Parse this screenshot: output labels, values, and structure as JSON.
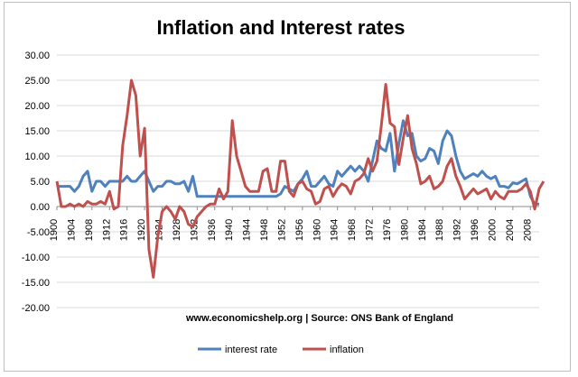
{
  "chart_data": {
    "type": "line",
    "title": "Inflation and Interest rates",
    "source_note": "www.economicshelp.org | Source: ONS Bank of England",
    "y_ticks": [
      "30.00",
      "25.00",
      "20.00",
      "15.00",
      "10.00",
      "5.00",
      "0.00",
      "-5.00",
      "-10.00",
      "-15.00",
      "-20.00"
    ],
    "ylim": [
      -20,
      30
    ],
    "xlim": [
      1900,
      2010
    ],
    "x_tick_labels": [
      "1900",
      "1904",
      "1908",
      "1912",
      "1916",
      "1920",
      "1924",
      "1928",
      "1932",
      "1936",
      "1940",
      "1944",
      "1948",
      "1952",
      "1956",
      "1960",
      "1964",
      "1968",
      "1972",
      "1976",
      "1980",
      "1984",
      "1988",
      "1992",
      "1996",
      "2000",
      "2004",
      "2008"
    ],
    "x_tick_values": [
      1900,
      1904,
      1908,
      1912,
      1916,
      1920,
      1924,
      1928,
      1932,
      1936,
      1940,
      1944,
      1948,
      1952,
      1956,
      1960,
      1964,
      1968,
      1972,
      1976,
      1980,
      1984,
      1988,
      1992,
      1996,
      2000,
      2004,
      2008
    ],
    "legend_position": "bottom",
    "grid": true,
    "series": [
      {
        "name": "interest rate",
        "color": "#4F81BD",
        "points": [
          [
            1900,
            4
          ],
          [
            1901,
            4
          ],
          [
            1902,
            4
          ],
          [
            1903,
            4
          ],
          [
            1904,
            3
          ],
          [
            1905,
            4
          ],
          [
            1906,
            6
          ],
          [
            1907,
            7
          ],
          [
            1908,
            3
          ],
          [
            1909,
            5
          ],
          [
            1910,
            5
          ],
          [
            1911,
            4
          ],
          [
            1912,
            5
          ],
          [
            1913,
            5
          ],
          [
            1914,
            5
          ],
          [
            1915,
            5
          ],
          [
            1916,
            6
          ],
          [
            1917,
            5
          ],
          [
            1918,
            5
          ],
          [
            1919,
            6
          ],
          [
            1920,
            7
          ],
          [
            1921,
            5
          ],
          [
            1922,
            3
          ],
          [
            1923,
            4
          ],
          [
            1924,
            4
          ],
          [
            1925,
            5
          ],
          [
            1926,
            5
          ],
          [
            1927,
            4.5
          ],
          [
            1928,
            4.5
          ],
          [
            1929,
            5
          ],
          [
            1930,
            3
          ],
          [
            1931,
            6
          ],
          [
            1932,
            2
          ],
          [
            1933,
            2
          ],
          [
            1934,
            2
          ],
          [
            1935,
            2
          ],
          [
            1936,
            2
          ],
          [
            1937,
            2
          ],
          [
            1938,
            2
          ],
          [
            1939,
            2
          ],
          [
            1940,
            2
          ],
          [
            1941,
            2
          ],
          [
            1942,
            2
          ],
          [
            1943,
            2
          ],
          [
            1944,
            2
          ],
          [
            1945,
            2
          ],
          [
            1946,
            2
          ],
          [
            1947,
            2
          ],
          [
            1948,
            2
          ],
          [
            1949,
            2
          ],
          [
            1950,
            2
          ],
          [
            1951,
            2.5
          ],
          [
            1952,
            4
          ],
          [
            1953,
            3.5
          ],
          [
            1954,
            3
          ],
          [
            1955,
            4.5
          ],
          [
            1956,
            5.5
          ],
          [
            1957,
            7
          ],
          [
            1958,
            4
          ],
          [
            1959,
            4
          ],
          [
            1960,
            5
          ],
          [
            1961,
            6
          ],
          [
            1962,
            4.5
          ],
          [
            1963,
            4
          ],
          [
            1964,
            7
          ],
          [
            1965,
            6
          ],
          [
            1966,
            7
          ],
          [
            1967,
            8
          ],
          [
            1968,
            7
          ],
          [
            1969,
            8
          ],
          [
            1970,
            7
          ],
          [
            1971,
            5
          ],
          [
            1972,
            9
          ],
          [
            1973,
            13
          ],
          [
            1974,
            11.5
          ],
          [
            1975,
            11
          ],
          [
            1976,
            14.5
          ],
          [
            1977,
            7
          ],
          [
            1978,
            12.5
          ],
          [
            1979,
            17
          ],
          [
            1980,
            14
          ],
          [
            1981,
            14.5
          ],
          [
            1982,
            10
          ],
          [
            1983,
            9
          ],
          [
            1984,
            9.5
          ],
          [
            1985,
            11.5
          ],
          [
            1986,
            11
          ],
          [
            1987,
            8.5
          ],
          [
            1988,
            13
          ],
          [
            1989,
            15
          ],
          [
            1990,
            14
          ],
          [
            1991,
            10
          ],
          [
            1992,
            7
          ],
          [
            1993,
            5.5
          ],
          [
            1994,
            6
          ],
          [
            1995,
            6.5
          ],
          [
            1996,
            6
          ],
          [
            1997,
            7
          ],
          [
            1998,
            6
          ],
          [
            1999,
            5.5
          ],
          [
            2000,
            6
          ],
          [
            2001,
            4
          ],
          [
            2002,
            4
          ],
          [
            2003,
            3.7
          ],
          [
            2004,
            4.7
          ],
          [
            2005,
            4.5
          ],
          [
            2006,
            5
          ],
          [
            2007,
            5.5
          ],
          [
            2008,
            2
          ],
          [
            2009,
            0.5
          ],
          [
            2010,
            0.5
          ]
        ]
      },
      {
        "name": "inflation",
        "color": "#C0504D",
        "points": [
          [
            1900,
            5
          ],
          [
            1901,
            0
          ],
          [
            1902,
            0
          ],
          [
            1903,
            0.5
          ],
          [
            1904,
            0
          ],
          [
            1905,
            0.5
          ],
          [
            1906,
            0
          ],
          [
            1907,
            1
          ],
          [
            1908,
            0.5
          ],
          [
            1909,
            0.5
          ],
          [
            1910,
            1
          ],
          [
            1911,
            0.5
          ],
          [
            1912,
            3
          ],
          [
            1913,
            -0.5
          ],
          [
            1914,
            0
          ],
          [
            1915,
            12
          ],
          [
            1916,
            18
          ],
          [
            1917,
            25
          ],
          [
            1918,
            22
          ],
          [
            1919,
            10
          ],
          [
            1920,
            15.5
          ],
          [
            1921,
            -8.5
          ],
          [
            1922,
            -14
          ],
          [
            1923,
            -6
          ],
          [
            1924,
            -1
          ],
          [
            1925,
            0
          ],
          [
            1926,
            -1
          ],
          [
            1927,
            -2.5
          ],
          [
            1928,
            0
          ],
          [
            1929,
            -1
          ],
          [
            1930,
            -3.5
          ],
          [
            1931,
            -4
          ],
          [
            1932,
            -2
          ],
          [
            1933,
            -1
          ],
          [
            1934,
            0
          ],
          [
            1935,
            0.5
          ],
          [
            1936,
            0.5
          ],
          [
            1937,
            3.5
          ],
          [
            1938,
            1.5
          ],
          [
            1939,
            3
          ],
          [
            1940,
            17
          ],
          [
            1941,
            10
          ],
          [
            1942,
            7
          ],
          [
            1943,
            4
          ],
          [
            1944,
            3
          ],
          [
            1945,
            3
          ],
          [
            1946,
            3
          ],
          [
            1947,
            7
          ],
          [
            1948,
            7.5
          ],
          [
            1949,
            3
          ],
          [
            1950,
            3
          ],
          [
            1951,
            9
          ],
          [
            1952,
            9
          ],
          [
            1953,
            3
          ],
          [
            1954,
            2
          ],
          [
            1955,
            4.5
          ],
          [
            1956,
            5
          ],
          [
            1957,
            3.5
          ],
          [
            1958,
            3
          ],
          [
            1959,
            0.5
          ],
          [
            1960,
            1
          ],
          [
            1961,
            3.5
          ],
          [
            1962,
            4
          ],
          [
            1963,
            2
          ],
          [
            1964,
            3.5
          ],
          [
            1965,
            4.5
          ],
          [
            1966,
            4
          ],
          [
            1967,
            2.5
          ],
          [
            1968,
            5
          ],
          [
            1969,
            5.5
          ],
          [
            1970,
            6.5
          ],
          [
            1971,
            9.5
          ],
          [
            1972,
            7
          ],
          [
            1973,
            9
          ],
          [
            1974,
            16
          ],
          [
            1975,
            24.2
          ],
          [
            1976,
            16.5
          ],
          [
            1977,
            15.8
          ],
          [
            1978,
            8.3
          ],
          [
            1979,
            13.5
          ],
          [
            1980,
            18
          ],
          [
            1981,
            11.5
          ],
          [
            1982,
            8.5
          ],
          [
            1983,
            4.5
          ],
          [
            1984,
            5
          ],
          [
            1985,
            6
          ],
          [
            1986,
            3.5
          ],
          [
            1987,
            4
          ],
          [
            1988,
            5
          ],
          [
            1989,
            8
          ],
          [
            1990,
            9.5
          ],
          [
            1991,
            6
          ],
          [
            1992,
            4
          ],
          [
            1993,
            1.5
          ],
          [
            1994,
            2.5
          ],
          [
            1995,
            3.5
          ],
          [
            1996,
            2.5
          ],
          [
            1997,
            3
          ],
          [
            1998,
            3.5
          ],
          [
            1999,
            1.5
          ],
          [
            2000,
            3
          ],
          [
            2001,
            2
          ],
          [
            2002,
            1.5
          ],
          [
            2003,
            3
          ],
          [
            2004,
            3
          ],
          [
            2005,
            3
          ],
          [
            2006,
            3.5
          ],
          [
            2007,
            4.5
          ],
          [
            2008,
            3
          ],
          [
            2009,
            -0.5
          ],
          [
            2010,
            3.5
          ],
          [
            2011,
            5
          ]
        ]
      }
    ]
  }
}
